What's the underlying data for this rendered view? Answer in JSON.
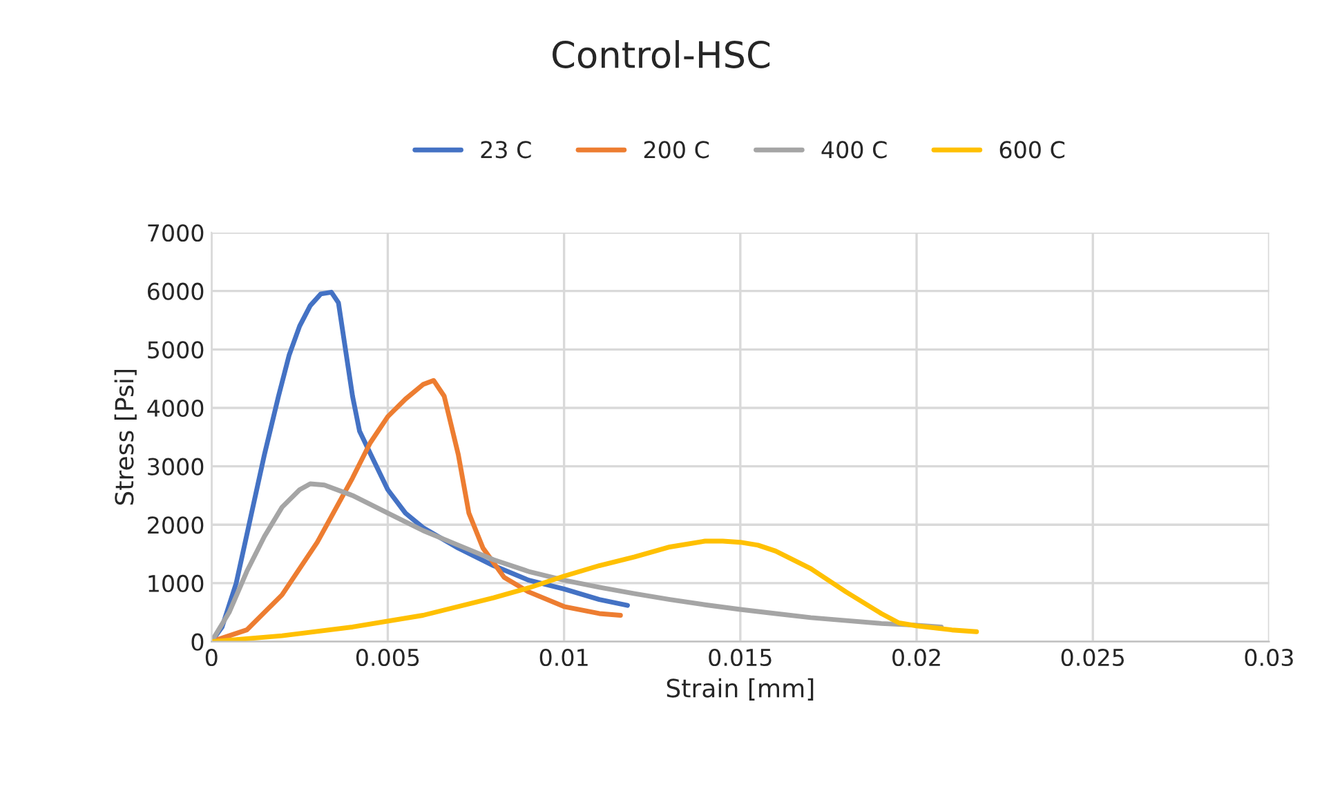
{
  "chart_data": {
    "type": "line",
    "title": "Control-HSC",
    "xlabel": "Strain [mm]",
    "ylabel": "Stress [Psi]",
    "xlim": [
      0,
      0.03
    ],
    "xticks": [
      0,
      0.005,
      0.01,
      0.015,
      0.02,
      0.025,
      0.03
    ],
    "ylim": [
      0,
      7000
    ],
    "yticks": [
      0,
      1000,
      2000,
      3000,
      4000,
      5000,
      6000,
      7000
    ],
    "grid": true,
    "legend": "top",
    "marker": "none",
    "line_style": "solid",
    "series": [
      {
        "name": "23 C",
        "color": "#4472c4",
        "x": [
          0,
          0.0003,
          0.0007,
          0.0011,
          0.0015,
          0.0019,
          0.0022,
          0.0025,
          0.0028,
          0.0031,
          0.0034,
          0.0036,
          0.0038,
          0.004,
          0.0042,
          0.0046,
          0.005,
          0.0055,
          0.006,
          0.007,
          0.008,
          0.009,
          0.01,
          0.011,
          0.0118
        ],
        "values": [
          0,
          250,
          1000,
          2100,
          3200,
          4200,
          4900,
          5400,
          5750,
          5950,
          5980,
          5800,
          5000,
          4200,
          3600,
          3100,
          2600,
          2200,
          1950,
          1600,
          1300,
          1050,
          900,
          720,
          620
        ]
      },
      {
        "name": "200 C",
        "color": "#ed7d31",
        "x": [
          0,
          0.001,
          0.002,
          0.003,
          0.004,
          0.0045,
          0.005,
          0.0055,
          0.006,
          0.0063,
          0.0066,
          0.007,
          0.0073,
          0.0077,
          0.0083,
          0.009,
          0.01,
          0.011,
          0.0116
        ],
        "values": [
          0,
          200,
          800,
          1700,
          2800,
          3400,
          3850,
          4150,
          4400,
          4470,
          4200,
          3200,
          2200,
          1600,
          1100,
          850,
          600,
          480,
          450
        ]
      },
      {
        "name": "400 C",
        "color": "#a5a5a5",
        "x": [
          0,
          0.0005,
          0.001,
          0.0015,
          0.002,
          0.0025,
          0.0028,
          0.0032,
          0.004,
          0.005,
          0.006,
          0.007,
          0.008,
          0.009,
          0.01,
          0.011,
          0.012,
          0.013,
          0.014,
          0.015,
          0.016,
          0.017,
          0.018,
          0.019,
          0.02,
          0.0207
        ],
        "values": [
          0,
          500,
          1200,
          1800,
          2300,
          2600,
          2700,
          2680,
          2500,
          2200,
          1900,
          1650,
          1400,
          1200,
          1050,
          930,
          820,
          720,
          630,
          550,
          480,
          410,
          360,
          310,
          280,
          250
        ]
      },
      {
        "name": "600 C",
        "color": "#ffc000",
        "x": [
          0,
          0.002,
          0.004,
          0.006,
          0.008,
          0.009,
          0.01,
          0.011,
          0.012,
          0.013,
          0.014,
          0.0145,
          0.015,
          0.0155,
          0.016,
          0.017,
          0.018,
          0.019,
          0.0195,
          0.02,
          0.021,
          0.0217
        ],
        "values": [
          0,
          100,
          250,
          450,
          750,
          920,
          1120,
          1300,
          1450,
          1620,
          1720,
          1720,
          1700,
          1650,
          1550,
          1250,
          850,
          480,
          320,
          270,
          200,
          170
        ]
      }
    ]
  }
}
